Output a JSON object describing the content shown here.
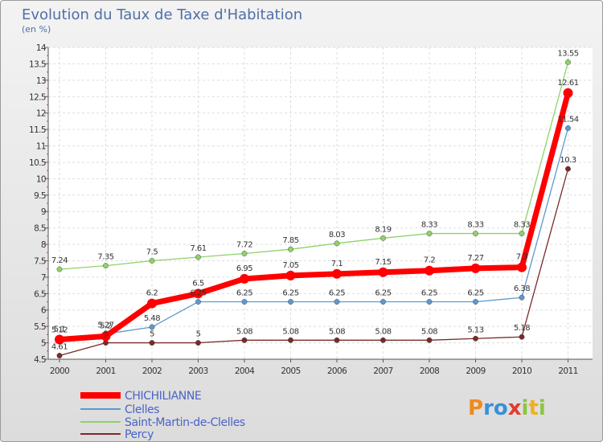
{
  "chart_data": {
    "type": "line",
    "title": "Evolution du Taux de Taxe d'Habitation",
    "subtitle": "(en %)",
    "xlabel": "",
    "ylabel": "",
    "ylim": [
      4.5,
      14
    ],
    "y_ticks": [
      "4.5",
      "5",
      "5.5",
      "6",
      "6.5",
      "7",
      "7.5",
      "8",
      "8.5",
      "9",
      "9.5",
      "10",
      "10.5",
      "11",
      "11.5",
      "12",
      "12.5",
      "13",
      "13.5",
      "14"
    ],
    "categories": [
      "2000",
      "2001",
      "2002",
      "2003",
      "2004",
      "2005",
      "2006",
      "2007",
      "2008",
      "2009",
      "2010",
      "2011"
    ],
    "grid": true,
    "legend_position": "bottom-left",
    "series": [
      {
        "name": "Saint-Martin-de-Clelles",
        "color": "#8fd16a",
        "values": [
          7.24,
          7.35,
          7.5,
          7.61,
          7.72,
          7.85,
          8.03,
          8.19,
          8.33,
          8.33,
          8.33,
          13.55
        ],
        "labels": [
          "7.24",
          "7.35",
          "7.5",
          "7.61",
          "7.72",
          "7.85",
          "8.03",
          "8.19",
          "8.33",
          "8.33",
          "8.33",
          "13.55"
        ]
      },
      {
        "name": "Clelles",
        "color": "#5f98cf",
        "values": [
          5.12,
          5.27,
          5.48,
          6.25,
          6.25,
          6.25,
          6.25,
          6.25,
          6.25,
          6.25,
          6.38,
          11.54
        ],
        "labels": [
          "5.12",
          "5.27",
          "5.48",
          "6.25",
          "6.25",
          "6.25",
          "6.25",
          "6.25",
          "6.25",
          "6.25",
          "6.38",
          "11.54"
        ]
      },
      {
        "name": "Percy",
        "color": "#7a2a2a",
        "values": [
          4.61,
          5,
          5,
          5,
          5.08,
          5.08,
          5.08,
          5.08,
          5.08,
          5.13,
          5.18,
          10.3
        ],
        "labels": [
          "4.61",
          "5",
          "5",
          "5",
          "5.08",
          "5.08",
          "5.08",
          "5.08",
          "5.08",
          "5.13",
          "5.18",
          "10.3"
        ]
      },
      {
        "name": "CHICHILIANNE",
        "color": "#ff0000",
        "values": [
          5.1,
          5.2,
          6.2,
          6.5,
          6.95,
          7.05,
          7.1,
          7.15,
          7.2,
          7.27,
          7.3,
          12.61
        ],
        "labels": [
          "5.1",
          "5.2",
          "6.2",
          "6.5",
          "6.95",
          "7.05",
          "7.1",
          "7.15",
          "7.2",
          "7.27",
          "7.3",
          "12.61"
        ]
      }
    ],
    "legend": [
      "CHICHILIANNE",
      "Clelles",
      "Saint-Martin-de-Clelles",
      "Percy"
    ]
  },
  "logo": {
    "text": "Proxiti",
    "letters": [
      "P",
      "r",
      "o",
      "x",
      "i",
      "t",
      "i"
    ],
    "colors": [
      "#f08a20",
      "#3a8fd8",
      "#3a8fd8",
      "#e23b2e",
      "#8cc63f",
      "#f0b020",
      "#8cc63f"
    ]
  }
}
